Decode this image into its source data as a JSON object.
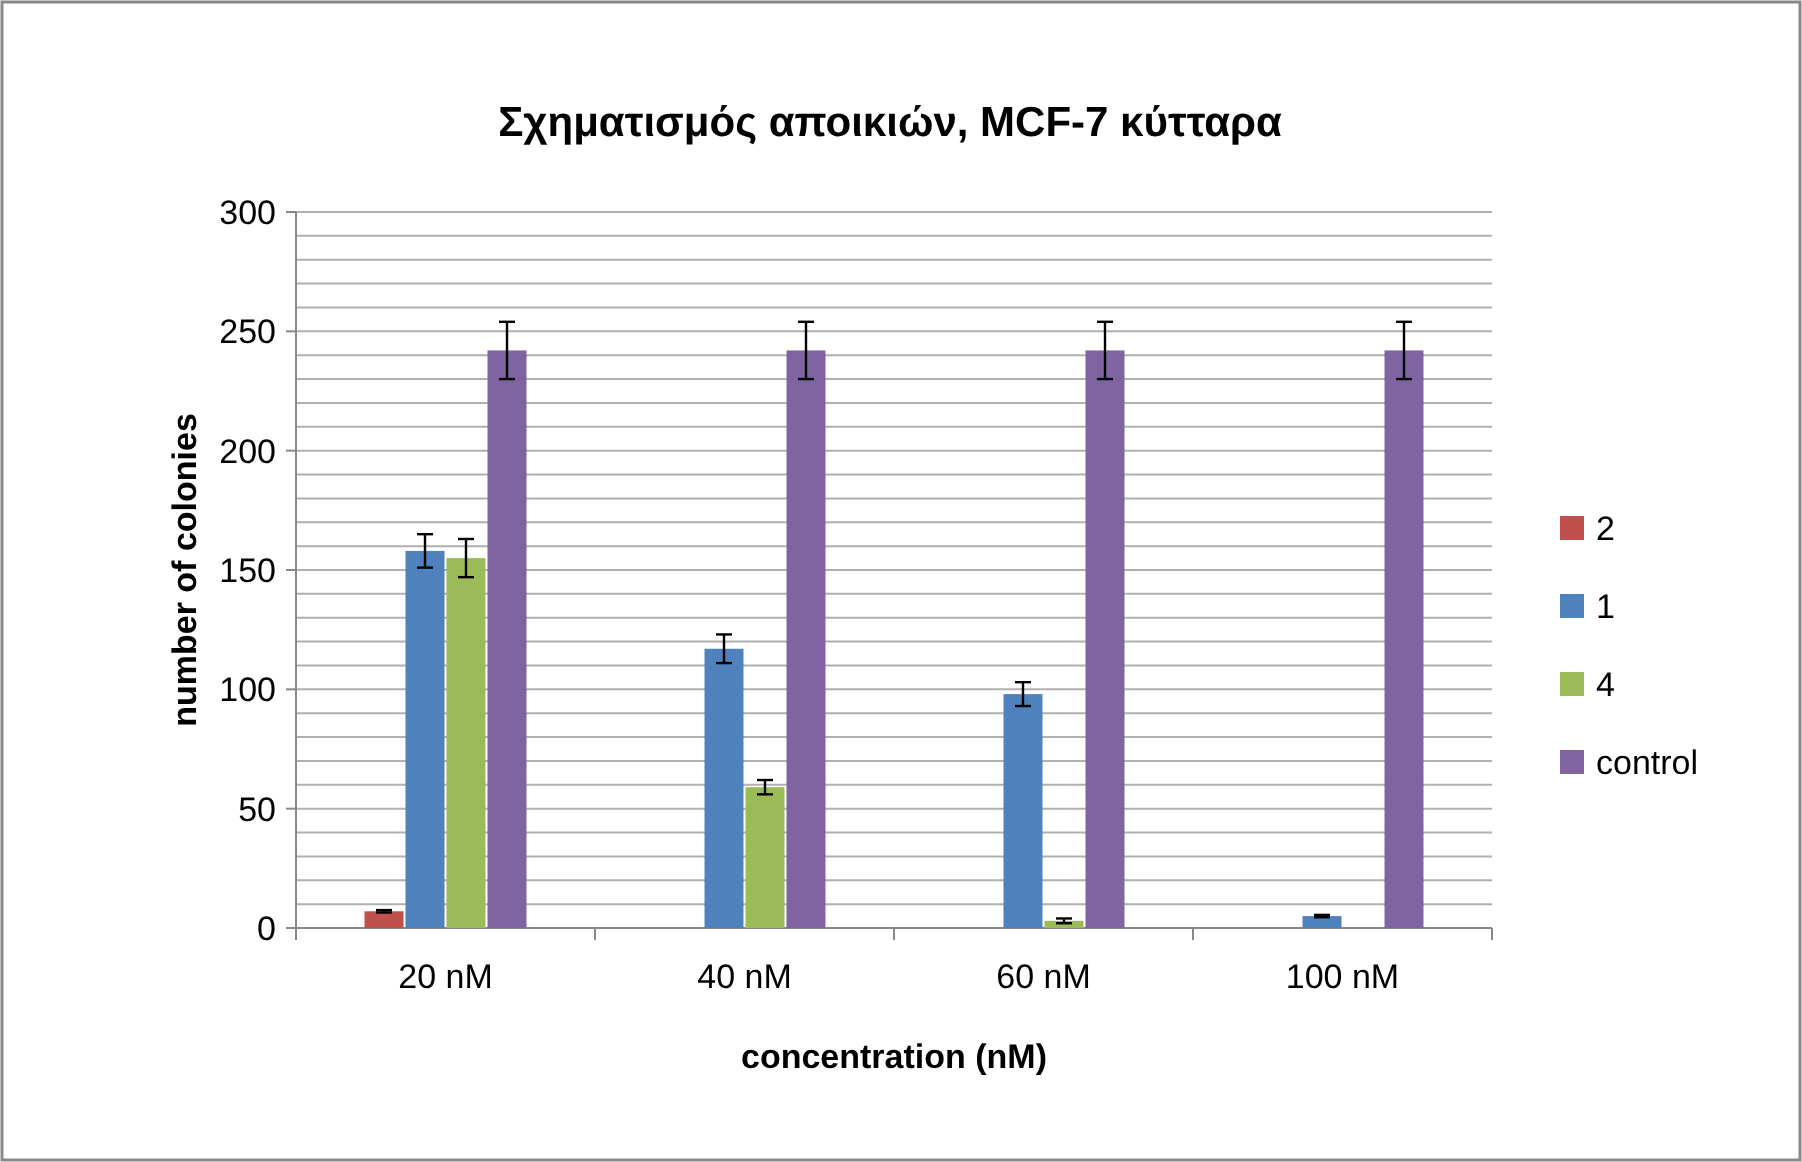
{
  "chart_data": {
    "type": "bar",
    "title": "Σχηματισμός αποικιών, MCF-7 κύτταρα",
    "xlabel": "concentration (nM)",
    "ylabel": "number of colonies",
    "categories": [
      "20 nM",
      "40 nM",
      "60 nM",
      "100 nM"
    ],
    "series": [
      {
        "name": "2",
        "color": "#c0504d",
        "values": [
          7,
          0,
          0,
          0
        ],
        "errors": [
          0.5,
          null,
          null,
          null
        ]
      },
      {
        "name": "1",
        "color": "#4f81bd",
        "values": [
          158,
          117,
          98,
          5
        ],
        "errors": [
          7,
          6,
          5,
          0.5
        ]
      },
      {
        "name": "4",
        "color": "#9bbb59",
        "values": [
          155,
          59,
          3,
          0
        ],
        "errors": [
          8,
          3,
          1,
          null
        ]
      },
      {
        "name": "control",
        "color": "#8064a2",
        "values": [
          242,
          242,
          242,
          242
        ],
        "errors": [
          12,
          12,
          12,
          12
        ]
      }
    ],
    "ylim": [
      0,
      300
    ],
    "yticks": [
      0,
      {
        "value": 10,
        "label": null
      },
      {
        "value": 20,
        "label": null
      },
      {
        "value": 30,
        "label": null
      },
      {
        "value": 40,
        "label": null
      },
      50,
      {
        "value": 60,
        "label": null
      },
      {
        "value": 70,
        "label": null
      },
      {
        "value": 80,
        "label": null
      },
      {
        "value": 90,
        "label": null
      },
      100,
      {
        "value": 110,
        "label": null
      },
      {
        "value": 120,
        "label": null
      },
      {
        "value": 130,
        "label": null
      },
      {
        "value": 140,
        "label": null
      },
      150,
      {
        "value": 160,
        "label": null
      },
      {
        "value": 170,
        "label": null
      },
      {
        "value": 180,
        "label": null
      },
      {
        "value": 190,
        "label": null
      },
      200,
      {
        "value": 210,
        "label": null
      },
      {
        "value": 220,
        "label": null
      },
      {
        "value": 230,
        "label": null
      },
      {
        "value": 240,
        "label": null
      },
      250,
      {
        "value": 260,
        "label": null
      },
      {
        "value": 270,
        "label": null
      },
      {
        "value": 280,
        "label": null
      },
      {
        "value": 290,
        "label": null
      },
      300
    ],
    "grid": true,
    "legend": "right"
  }
}
